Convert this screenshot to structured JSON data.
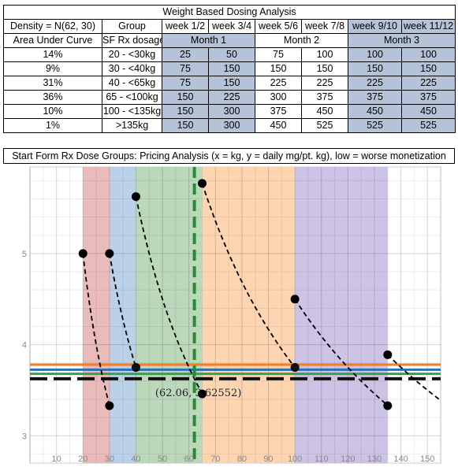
{
  "table": {
    "title": "Weight Based Dosing Analysis",
    "header_row": [
      "Density = N(62, 30)",
      "Group",
      "week 1/2",
      "week 3/4",
      "week 5/6",
      "week 7/8",
      "week 9/10",
      "week 11/12"
    ],
    "sub_header": {
      "auc": "Area Under Curve",
      "group": "SF Rx dosage",
      "month1": "Month 1",
      "month2": "Month 2",
      "month3": "Month 3"
    },
    "rows": [
      {
        "auc": "14%",
        "group": "20 - <30kg",
        "doses": [
          "25",
          "50",
          "75",
          "100",
          "100",
          "100"
        ]
      },
      {
        "auc": "9%",
        "group": "30 - <40kg",
        "doses": [
          "75",
          "150",
          "150",
          "150",
          "150",
          "150"
        ]
      },
      {
        "auc": "31%",
        "group": "40 - <65kg",
        "doses": [
          "75",
          "150",
          "225",
          "225",
          "225",
          "225"
        ]
      },
      {
        "auc": "36%",
        "group": "65 - <100kg",
        "doses": [
          "150",
          "225",
          "300",
          "375",
          "375",
          "375"
        ]
      },
      {
        "auc": "10%",
        "group": "100 - <135kg",
        "doses": [
          "150",
          "300",
          "375",
          "450",
          "450",
          "450"
        ]
      },
      {
        "auc": "1%",
        "group": ">135kg",
        "doses": [
          "150",
          "300",
          "450",
          "525",
          "525",
          "525"
        ]
      }
    ]
  },
  "chart_caption": "Start Form Rx Dose Groups: Pricing Analysis (x = kg, y = daily mg/pt. kg), low = worse monetization",
  "chart_data": {
    "type": "line",
    "xlim": [
      0,
      155
    ],
    "ylim": [
      2.7,
      5.95
    ],
    "x_ticks": [
      10,
      20,
      30,
      40,
      50,
      60,
      70,
      80,
      90,
      100,
      110,
      120,
      130,
      140,
      150
    ],
    "y_ticks": [
      3,
      4,
      5
    ],
    "grid": true,
    "bands": [
      {
        "from": 20,
        "to": 30,
        "color": "#e8b4b4"
      },
      {
        "from": 30,
        "to": 40,
        "color": "#b4cce6"
      },
      {
        "from": 40,
        "to": 65,
        "color": "#b4d4b4"
      },
      {
        "from": 65,
        "to": 100,
        "color": "#fdd0a8"
      },
      {
        "from": 100,
        "to": 135,
        "color": "#c8bce2"
      }
    ],
    "curves": [
      {
        "x": [
          20,
          30
        ],
        "y": [
          5.0,
          3.33
        ]
      },
      {
        "x": [
          30,
          40
        ],
        "y": [
          5.0,
          3.75
        ]
      },
      {
        "x": [
          40,
          65
        ],
        "y": [
          5.625,
          3.46
        ]
      },
      {
        "x": [
          65,
          100
        ],
        "y": [
          5.77,
          3.75
        ]
      },
      {
        "x": [
          100,
          135
        ],
        "y": [
          4.5,
          3.33
        ]
      },
      {
        "x": [
          135,
          155
        ],
        "y": [
          3.89,
          3.39
        ]
      }
    ],
    "hlines": [
      {
        "y": 3.78,
        "color": "#f57c20"
      },
      {
        "y": 3.725,
        "color": "#2a6fb8"
      },
      {
        "y": 3.68,
        "color": "#3aa04a"
      },
      {
        "y": 3.62552,
        "color": "#111111",
        "style": "dashed"
      }
    ],
    "vline": {
      "x": 62.06,
      "color": "#2a8a3a",
      "style": "dashed"
    },
    "annotation": {
      "x": 62.06,
      "y": 3.62552,
      "label": "(62.06, 3.62552)"
    }
  }
}
